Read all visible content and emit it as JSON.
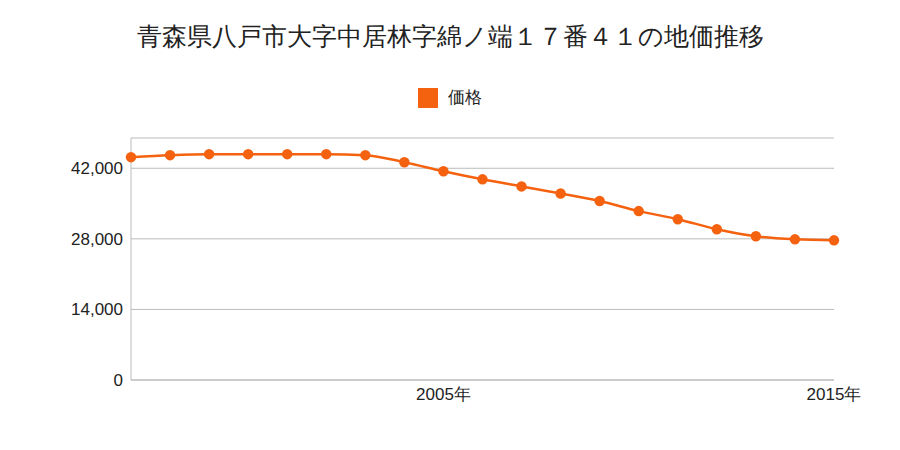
{
  "chart_data": {
    "type": "line",
    "title": "青森県八戸市大字中居林字綿ノ端１７番４１の地価推移",
    "categories": [
      null,
      null,
      null,
      null,
      null,
      null,
      null,
      null,
      "2005年",
      null,
      null,
      null,
      null,
      null,
      null,
      null,
      null,
      null,
      "2015年"
    ],
    "series": [
      {
        "name": "価格",
        "color": "#f5620f",
        "marker": "circle",
        "values": [
          44200,
          44600,
          44800,
          44800,
          44800,
          44800,
          44600,
          43200,
          41400,
          39800,
          38400,
          37000,
          35500,
          33500,
          31900,
          29900,
          28500,
          27900,
          27700
        ]
      }
    ],
    "ylim": [
      0,
      48000
    ],
    "yticks": [
      0,
      {
        "value": 14000,
        "label": "14,000"
      },
      {
        "value": 28000,
        "label": "28,000"
      },
      {
        "value": 42000,
        "label": "42,000"
      }
    ],
    "grid": true,
    "legend": "top"
  }
}
